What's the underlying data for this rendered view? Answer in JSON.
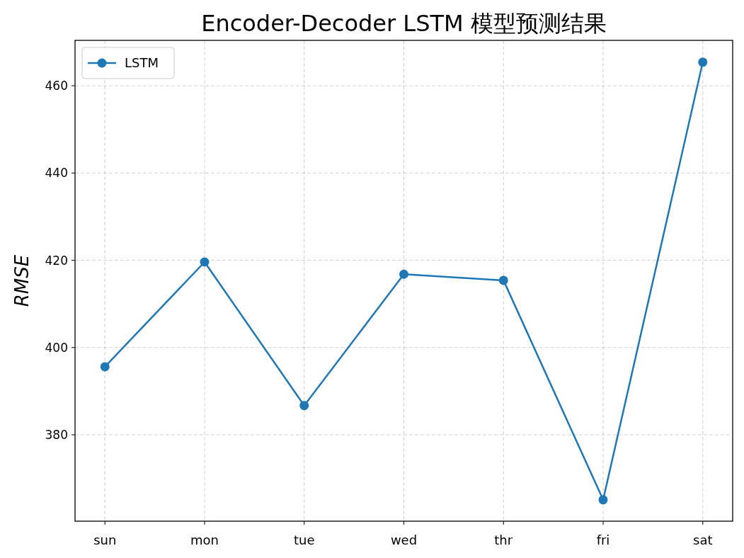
{
  "chart_data": {
    "type": "line",
    "title": "Encoder-Decoder LSTM 模型预测结果",
    "ylabel": "RMSE",
    "categories": [
      "sun",
      "mon",
      "tue",
      "wed",
      "thr",
      "fri",
      "sat"
    ],
    "series": [
      {
        "name": "LSTM",
        "color": "#1f77b4",
        "values": [
          395.6,
          419.6,
          386.7,
          416.8,
          415.4,
          365.1,
          465.4
        ]
      }
    ],
    "ylim": [
      360.2,
      470.4
    ],
    "yticks": [
      380,
      400,
      420,
      440,
      460
    ],
    "grid": true,
    "legend": "top left",
    "marker": "circle",
    "line_style": "solid"
  }
}
